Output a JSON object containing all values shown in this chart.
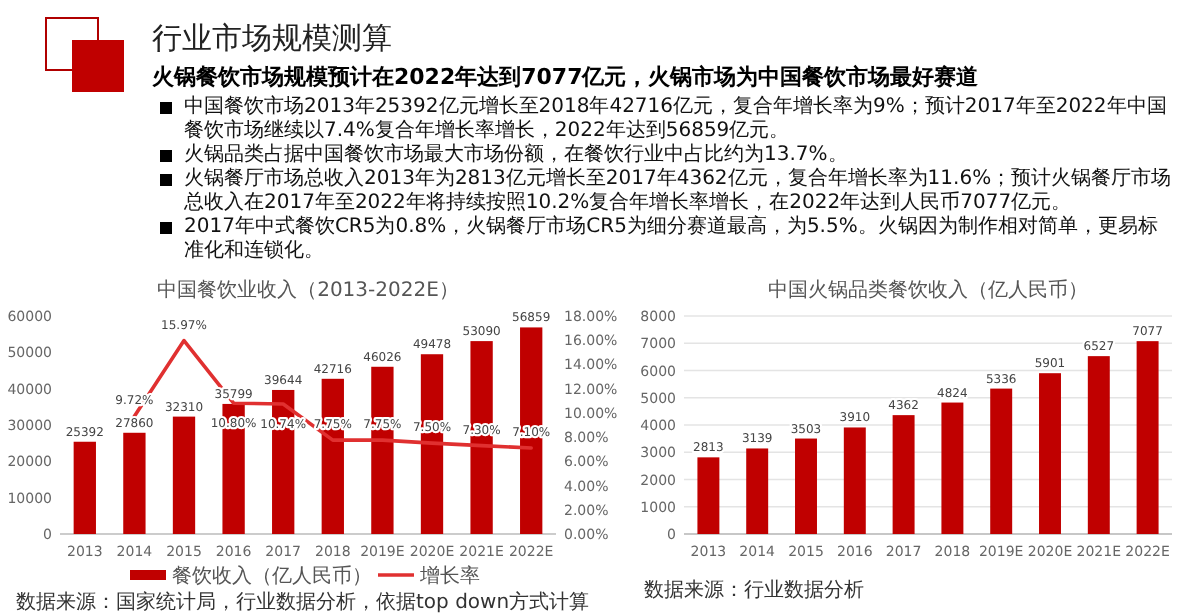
{
  "chart_data": [
    {
      "type": "other",
      "title": "行业市场规模测算",
      "subtitle": "火锅餐饮市场规模预计在2022年达到7077亿元，火锅市场为中国餐饮市场最好赛道",
      "annotations": [
        "中国餐饮市场2013年25392亿元增长至2018年42716亿元，复合年增长率为9%；预计2017年至2022年中国餐饮市场继续以7.4%复合年增长率增长，2022年达到56859亿元。",
        "火锅品类占据中国餐饮市场最大市场份额，在餐饮行业中占比约为13.7%。",
        "火锅餐厅市场总收入2013年为2813亿元增长至2017年4362亿元，复合年增长率为11.6%；预计火锅餐厅市场总收入在2017年至2022年将持续按照10.2%复合年增长率增长，在2022年达到人民币7077亿元。",
        "2017年中式餐饮CR5为0.8%，火锅餐厅市场CR5为细分赛道最高，为5.5%。火锅因为制作相对简单，更易标准化和连锁化。"
      ]
    },
    {
      "type": "bar",
      "title": "中国餐饮业收入（2013-2022E）",
      "categories": [
        "2013",
        "2014",
        "2015",
        "2016",
        "2017",
        "2018",
        "2019E",
        "2020E",
        "2021E",
        "2022E"
      ],
      "series": [
        {
          "name": "餐饮收入（亿人民币）",
          "type": "bar",
          "color": "#c00000",
          "values": [
            25392,
            27860,
            32310,
            35799,
            39644,
            42716,
            46026,
            49478,
            53090,
            56859
          ],
          "value_labels": [
            "25392",
            "27860",
            "32310",
            "35799",
            "39644",
            "42716",
            "46026",
            "49478",
            "53090",
            "56859"
          ]
        },
        {
          "name": "增长率",
          "type": "line",
          "axis": "y2",
          "color": "#e03030",
          "values": [
            null,
            9.72,
            15.97,
            10.8,
            10.74,
            7.75,
            7.75,
            7.5,
            7.3,
            7.1
          ],
          "value_labels": [
            null,
            "9.72%",
            "15.97%",
            "10.80%",
            "10.74%",
            "7.75%",
            "7.75%",
            "7.50%",
            "7.30%",
            "7.10%"
          ]
        }
      ],
      "ylim": [
        0,
        60000
      ],
      "yticks": [
        0,
        10000,
        20000,
        30000,
        40000,
        50000,
        60000
      ],
      "y2lim": [
        0,
        18
      ],
      "y2ticks": [
        {
          "value": 0,
          "label": "0.00%"
        },
        {
          "value": 2,
          "label": "2.00%"
        },
        {
          "value": 4,
          "label": "4.00%"
        },
        {
          "value": 6,
          "label": "6.00%"
        },
        {
          "value": 8,
          "label": "8.00%"
        },
        {
          "value": 10,
          "label": "10.00%"
        },
        {
          "value": 12,
          "label": "12.00%"
        },
        {
          "value": 14,
          "label": "14.00%"
        },
        {
          "value": 16,
          "label": "16.00%"
        },
        {
          "value": 18,
          "label": "18.00%"
        }
      ],
      "grid": false,
      "legend": "bottom",
      "marker": "none",
      "line_style": "solid",
      "annotations": [
        "数据来源：国家统计局，行业数据分析，依据top down方式计算"
      ]
    },
    {
      "type": "bar",
      "title": "中国火锅品类餐饮收入（亿人民币）",
      "categories": [
        "2013",
        "2014",
        "2015",
        "2016",
        "2017",
        "2018",
        "2019E",
        "2020E",
        "2021E",
        "2022E"
      ],
      "series": [
        {
          "color": "#c00000",
          "values": [
            2813,
            3139,
            3503,
            3910,
            4362,
            4824,
            5336,
            5901,
            6527,
            7077
          ]
        }
      ],
      "ylim": [
        0,
        8000
      ],
      "yticks": [
        0,
        1000,
        2000,
        3000,
        4000,
        5000,
        6000,
        7000,
        8000
      ],
      "grid": "y",
      "data_labels": true,
      "legend": false,
      "annotations": [
        "数据来源：行业数据分析"
      ]
    }
  ]
}
